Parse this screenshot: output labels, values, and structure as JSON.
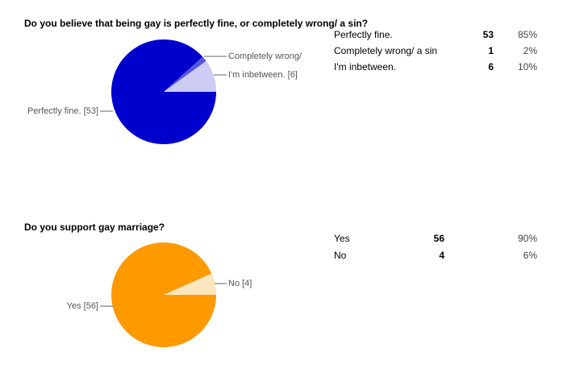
{
  "chart_data": [
    {
      "type": "pie",
      "title": "Do you believe that being gay is perfectly fine, or completely wrong/ a sin?",
      "categories": [
        "Perfectly fine.",
        "Completely wrong/ a sin",
        "I'm inbetween."
      ],
      "values": [
        53,
        1,
        6
      ],
      "slice_labels": [
        "Perfectly fine. [53]",
        "Completely wrong/",
        "I'm inbetween. [6]"
      ],
      "shares": [
        {
          "value": 85,
          "label": "85%"
        },
        {
          "value": 2,
          "label": "2%"
        },
        {
          "value": 10,
          "label": "10%"
        }
      ],
      "colors": [
        "#0000cc",
        "#5555dd",
        "#ccccf5"
      ]
    },
    {
      "type": "pie",
      "title": "Do you support gay marriage?",
      "categories": [
        "Yes",
        "No"
      ],
      "values": [
        56,
        4
      ],
      "slice_labels": [
        "Yes [56]",
        "No [4]"
      ],
      "shares": [
        {
          "value": 90,
          "label": "90%"
        },
        {
          "value": 6,
          "label": "6%"
        }
      ],
      "colors": [
        "#ff9900",
        "#fde6c0"
      ]
    }
  ]
}
